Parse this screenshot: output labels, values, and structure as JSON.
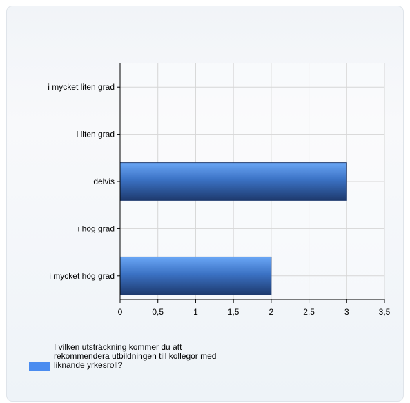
{
  "chart_data": {
    "type": "bar",
    "orientation": "horizontal",
    "categories": [
      "i mycket liten grad",
      "i liten grad",
      "delvis",
      "i hög grad",
      "i mycket hög grad"
    ],
    "series": [
      {
        "name": "I vilken utsträckning kommer du att rekommendera utbildningen till kollegor med liknande yrkesroll?",
        "values": [
          0,
          0,
          3,
          0,
          2
        ]
      }
    ],
    "xlim": [
      0,
      3.5
    ],
    "xticks": [
      "0",
      "0,5",
      "1",
      "1,5",
      "2",
      "2,5",
      "3",
      "3,5"
    ],
    "grid": true,
    "legend": "bottom-left",
    "bar_color": "#4a8cf0",
    "bar_color_dark": "#1e3a6e"
  }
}
